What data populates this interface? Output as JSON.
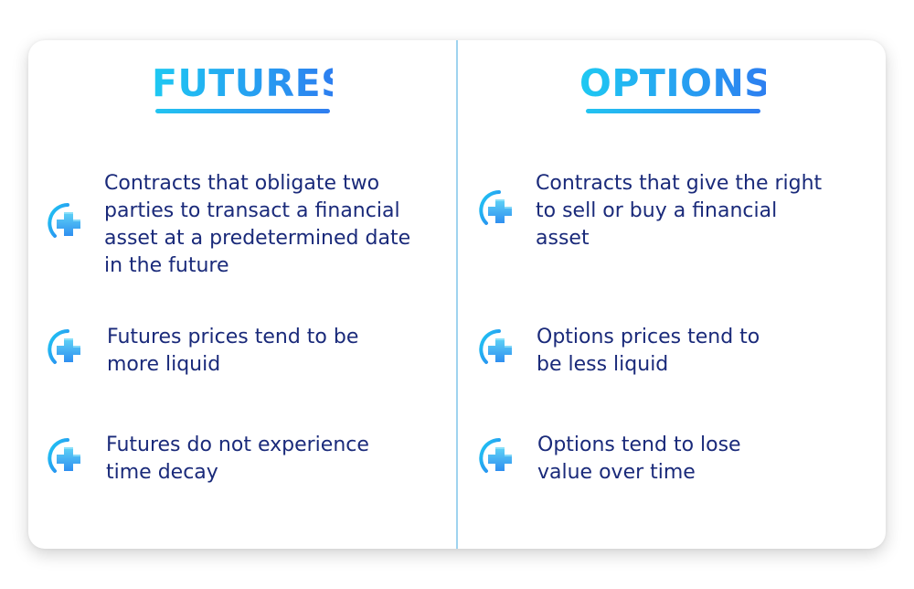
{
  "left": {
    "title": "FUTURES",
    "items": [
      {
        "lines": [
          "Contracts that obligate two",
          "parties to transact a financial",
          "asset at a predetermined date",
          "in the future"
        ],
        "icon": "plus-icon"
      },
      {
        "lines": [
          "Futures prices tend to be",
          "more liquid"
        ],
        "icon": "plus-icon"
      },
      {
        "lines": [
          "Futures do not experience",
          "time decay"
        ],
        "icon": "plus-icon"
      }
    ]
  },
  "right": {
    "title": "OPTIONS",
    "items": [
      {
        "lines": [
          "Contracts that give the right",
          "to sell or buy a financial",
          "asset"
        ],
        "icon": "plus-icon"
      },
      {
        "lines": [
          "Options prices tend to",
          "be less liquid"
        ],
        "icon": "plus-icon"
      },
      {
        "lines": [
          "Options tend to lose",
          "value over time"
        ],
        "icon": "plus-icon"
      }
    ]
  },
  "colors": {
    "accent_cyan": "#1ec9f2",
    "accent_blue": "#2d7ff0",
    "text_navy": "#1a2a7a",
    "divider": "#9fd3ef"
  }
}
